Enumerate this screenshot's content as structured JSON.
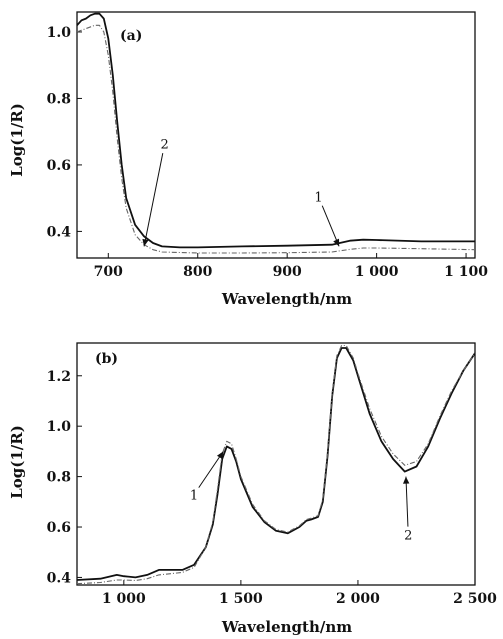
{
  "chart_data": [
    {
      "type": "line",
      "panel_label": "(a)",
      "xlabel": "Wavelength/nm",
      "ylabel": "Log(1/R)",
      "xlim": [
        665,
        1110
      ],
      "ylim": [
        0.32,
        1.06
      ],
      "x_ticks": [
        {
          "value": 700,
          "label": "700"
        },
        {
          "value": 800,
          "label": "800"
        },
        {
          "value": 900,
          "label": "900"
        },
        {
          "value": 1000,
          "label": "1 000"
        },
        {
          "value": 1100,
          "label": "1 100"
        }
      ],
      "y_ticks": [
        {
          "value": 0.4,
          "label": "0.4"
        },
        {
          "value": 0.6,
          "label": "0.6"
        },
        {
          "value": 0.8,
          "label": "0.8"
        },
        {
          "value": 1.0,
          "label": "1.0"
        }
      ],
      "grid": false,
      "series": [
        {
          "style": "solid",
          "color": "#111111",
          "x": [
            665,
            670,
            675,
            680,
            685,
            690,
            695,
            700,
            705,
            710,
            715,
            720,
            730,
            740,
            750,
            760,
            780,
            800,
            850,
            900,
            950,
            970,
            985,
            1000,
            1050,
            1110
          ],
          "y": [
            1.02,
            1.035,
            1.04,
            1.05,
            1.055,
            1.055,
            1.04,
            0.98,
            0.87,
            0.73,
            0.6,
            0.5,
            0.42,
            0.385,
            0.365,
            0.355,
            0.352,
            0.352,
            0.355,
            0.357,
            0.36,
            0.372,
            0.375,
            0.374,
            0.37,
            0.37
          ]
        },
        {
          "style": "dashed",
          "color": "#666666",
          "x": [
            665,
            675,
            685,
            690,
            695,
            700,
            705,
            710,
            715,
            720,
            730,
            740,
            750,
            760,
            800,
            850,
            900,
            950,
            970,
            985,
            1000,
            1050,
            1110
          ],
          "y": [
            1.0,
            1.01,
            1.02,
            1.02,
            1.0,
            0.93,
            0.82,
            0.68,
            0.56,
            0.47,
            0.39,
            0.36,
            0.345,
            0.338,
            0.335,
            0.335,
            0.336,
            0.338,
            0.346,
            0.35,
            0.35,
            0.348,
            0.345
          ]
        }
      ],
      "annotations": [
        {
          "text": "2",
          "x": 763,
          "y": 0.65,
          "arrow_to": [
            740,
            0.355
          ]
        },
        {
          "text": "1",
          "x": 935,
          "y": 0.49,
          "arrow_to": [
            958,
            0.355
          ]
        }
      ]
    },
    {
      "type": "line",
      "panel_label": "(b)",
      "xlabel": "Wavelength/nm",
      "ylabel": "Log(1/R)",
      "xlim": [
        800,
        2500
      ],
      "ylim": [
        0.37,
        1.33
      ],
      "x_ticks": [
        {
          "value": 1000,
          "label": "1 000"
        },
        {
          "value": 1500,
          "label": "1 500"
        },
        {
          "value": 2000,
          "label": "2 000"
        },
        {
          "value": 2500,
          "label": "2 500"
        }
      ],
      "y_ticks": [
        {
          "value": 0.4,
          "label": "0.4"
        },
        {
          "value": 0.6,
          "label": "0.6"
        },
        {
          "value": 0.8,
          "label": "0.8"
        },
        {
          "value": 1.0,
          "label": "1.0"
        },
        {
          "value": 1.2,
          "label": "1.2"
        }
      ],
      "grid": false,
      "series": [
        {
          "style": "solid",
          "color": "#111111",
          "x": [
            800,
            900,
            970,
            1000,
            1050,
            1100,
            1150,
            1200,
            1250,
            1300,
            1350,
            1380,
            1400,
            1420,
            1440,
            1460,
            1480,
            1500,
            1550,
            1600,
            1650,
            1700,
            1750,
            1780,
            1800,
            1830,
            1850,
            1870,
            1890,
            1910,
            1930,
            1950,
            1980,
            2000,
            2050,
            2100,
            2150,
            2200,
            2250,
            2300,
            2350,
            2400,
            2450,
            2500
          ],
          "y": [
            0.39,
            0.395,
            0.41,
            0.405,
            0.4,
            0.41,
            0.43,
            0.43,
            0.43,
            0.45,
            0.52,
            0.61,
            0.73,
            0.87,
            0.92,
            0.91,
            0.86,
            0.79,
            0.68,
            0.62,
            0.585,
            0.575,
            0.6,
            0.625,
            0.63,
            0.64,
            0.7,
            0.88,
            1.12,
            1.27,
            1.31,
            1.31,
            1.26,
            1.2,
            1.05,
            0.94,
            0.87,
            0.82,
            0.84,
            0.92,
            1.03,
            1.13,
            1.22,
            1.29
          ]
        },
        {
          "style": "dashed",
          "color": "#666666",
          "x": [
            800,
            900,
            970,
            1000,
            1050,
            1100,
            1150,
            1200,
            1250,
            1300,
            1350,
            1380,
            1400,
            1420,
            1440,
            1460,
            1480,
            1500,
            1550,
            1600,
            1650,
            1700,
            1750,
            1780,
            1800,
            1830,
            1850,
            1870,
            1890,
            1910,
            1930,
            1950,
            1980,
            2000,
            2050,
            2100,
            2150,
            2200,
            2250,
            2300,
            2350,
            2400,
            2450,
            2500
          ],
          "y": [
            0.375,
            0.38,
            0.39,
            0.39,
            0.388,
            0.395,
            0.41,
            0.415,
            0.42,
            0.44,
            0.52,
            0.62,
            0.75,
            0.89,
            0.94,
            0.93,
            0.87,
            0.8,
            0.69,
            0.625,
            0.59,
            0.58,
            0.605,
            0.63,
            0.635,
            0.645,
            0.71,
            0.89,
            1.13,
            1.28,
            1.32,
            1.32,
            1.27,
            1.21,
            1.07,
            0.96,
            0.89,
            0.845,
            0.86,
            0.93,
            1.04,
            1.14,
            1.22,
            1.29
          ]
        }
      ],
      "annotations": [
        {
          "text": "1",
          "x": 1300,
          "y": 0.71,
          "arrow_to": [
            1425,
            0.9
          ]
        },
        {
          "text": "2",
          "x": 2215,
          "y": 0.55,
          "arrow_to": [
            2205,
            0.8
          ]
        }
      ]
    }
  ]
}
